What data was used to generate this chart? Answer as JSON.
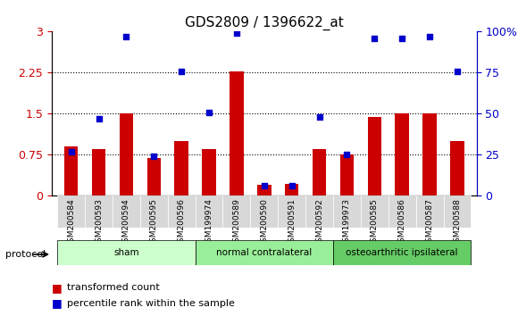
{
  "title": "GDS2809 / 1396622_at",
  "samples": [
    "GSM200584",
    "GSM200593",
    "GSM200594",
    "GSM200595",
    "GSM200596",
    "GSM199974",
    "GSM200589",
    "GSM200590",
    "GSM200591",
    "GSM200592",
    "GSM199973",
    "GSM200585",
    "GSM200586",
    "GSM200587",
    "GSM200588"
  ],
  "red_values": [
    0.9,
    0.85,
    1.5,
    0.7,
    1.0,
    0.85,
    2.28,
    0.2,
    0.22,
    0.85,
    0.75,
    1.45,
    1.5,
    1.5,
    1.0
  ],
  "blue_values": [
    0.82,
    1.42,
    2.93,
    0.72,
    2.28,
    1.52,
    2.96,
    0.18,
    0.18,
    1.45,
    0.75,
    2.87,
    2.87,
    2.9,
    2.28
  ],
  "blue_right_values": [
    27,
    47,
    97,
    24,
    76,
    51,
    99,
    6,
    6,
    48,
    25,
    96,
    96,
    97,
    76
  ],
  "groups": [
    {
      "label": "sham",
      "start": 0,
      "end": 5,
      "color": "#ccffcc"
    },
    {
      "label": "normal contralateral",
      "start": 5,
      "end": 10,
      "color": "#99ff99"
    },
    {
      "label": "osteoarthritic ipsilateral",
      "start": 10,
      "end": 15,
      "color": "#66cc66"
    }
  ],
  "ylim_left": [
    0,
    3.0
  ],
  "ylim_right": [
    0,
    100
  ],
  "yticks_left": [
    0,
    0.75,
    1.5,
    2.25,
    3.0
  ],
  "yticks_right": [
    0,
    25,
    50,
    75,
    100
  ],
  "ytick_labels_left": [
    "0",
    "0.75",
    "1.5",
    "2.25",
    "3"
  ],
  "ytick_labels_right": [
    "0",
    "25",
    "50",
    "75",
    "100%"
  ],
  "red_color": "#cc0000",
  "blue_color": "#0000cc",
  "bar_width": 0.5,
  "bg_color": "#f0f0f0",
  "protocol_label": "protocol",
  "legend_red": "transformed count",
  "legend_blue": "percentile rank within the sample"
}
